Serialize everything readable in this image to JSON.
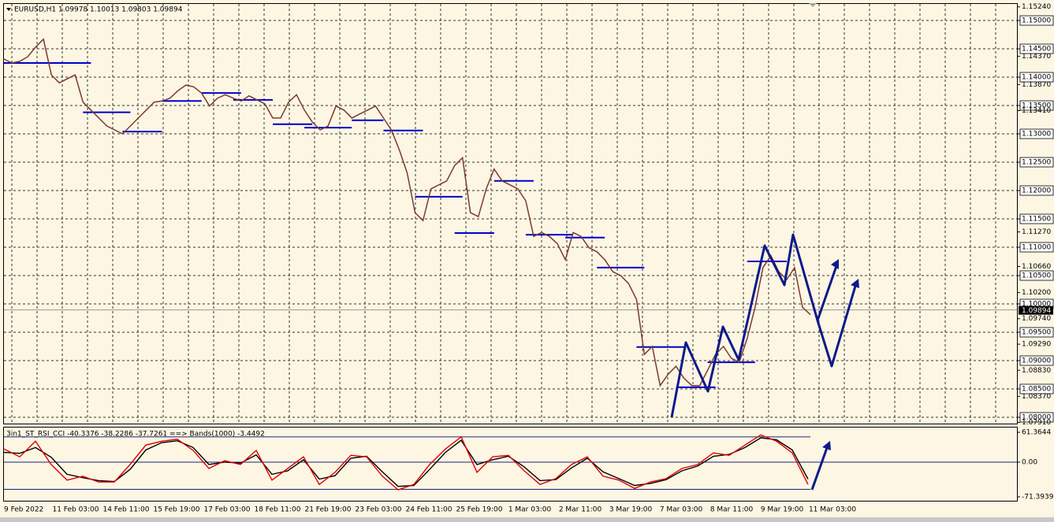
{
  "chart_data": [
    {
      "type": "line",
      "title": "EURUSD,H1  1.09978 1.10013 1.09803 1.09894",
      "color": "#7a3b2e",
      "values": [
        1.1432,
        1.1425,
        1.1428,
        1.1436,
        1.1453,
        1.1467,
        1.1404,
        1.139,
        1.1397,
        1.1404,
        1.1356,
        1.1342,
        1.1328,
        1.1314,
        1.1307,
        1.13,
        1.1314,
        1.1328,
        1.1342,
        1.1356,
        1.1358,
        1.1363,
        1.1376,
        1.1386,
        1.1383,
        1.1372,
        1.1349,
        1.1363,
        1.1369,
        1.1363,
        1.1358,
        1.1367,
        1.136,
        1.1353,
        1.1328,
        1.1328,
        1.1356,
        1.1369,
        1.1342,
        1.1321,
        1.1307,
        1.1314,
        1.1349,
        1.1342,
        1.1328,
        1.1335,
        1.1342,
        1.1349,
        1.1328,
        1.1307,
        1.1272,
        1.1231,
        1.1161,
        1.1147,
        1.1203,
        1.121,
        1.1217,
        1.1244,
        1.1258,
        1.1161,
        1.1154,
        1.1203,
        1.1238,
        1.1217,
        1.121,
        1.1203,
        1.1182,
        1.1119,
        1.1126,
        1.1119,
        1.1106,
        1.1078,
        1.1126,
        1.1119,
        1.1099,
        1.1092,
        1.1078,
        1.1057,
        1.105,
        1.1036,
        1.1008,
        1.0911,
        1.0925,
        1.0856,
        1.0876,
        1.089,
        1.0869,
        1.0856,
        1.0856,
        1.0883,
        1.0911,
        1.0925,
        1.0904,
        1.0897,
        1.0939,
        1.0994,
        1.1064,
        1.1085,
        1.1057,
        1.1043,
        1.1064,
        1.0994,
        1.0981
      ],
      "levels": [
        1.1425,
        1.1338,
        1.1304,
        1.1358,
        1.1372,
        1.136,
        1.1317,
        1.1311,
        1.1324,
        1.1306,
        1.1189,
        1.1125,
        1.1217,
        1.1122,
        1.1117,
        1.1064,
        1.0924,
        1.0853,
        1.0897,
        1.1075
      ],
      "level_color": "#0000cc",
      "last_price": {
        "value": 1.09894,
        "label": "1.09894"
      },
      "ylim": [
        1.07889,
        1.15292
      ],
      "yticks": [
        {
          "value": 1.15,
          "label": "1.15000"
        },
        {
          "value": 1.145,
          "label": "1.14500"
        },
        {
          "value": 1.14,
          "label": "1.14000"
        },
        {
          "value": 1.135,
          "label": "1.13500"
        },
        {
          "value": 1.13,
          "label": "1.13000"
        },
        {
          "value": 1.125,
          "label": "1.12500"
        },
        {
          "value": 1.12,
          "label": "1.12000"
        },
        {
          "value": 1.115,
          "label": "1.11500"
        },
        {
          "value": 1.11,
          "label": "1.11000"
        },
        {
          "value": 1.105,
          "label": "1.10500"
        },
        {
          "value": 1.1,
          "label": "1.10000"
        },
        {
          "value": 1.095,
          "label": "1.09500"
        },
        {
          "value": 1.09,
          "label": "1.09000"
        },
        {
          "value": 1.085,
          "label": "1.08500"
        },
        {
          "value": 1.08,
          "label": "1.08000"
        }
      ],
      "yticks_minor": [
        {
          "value": 1.1524,
          "label": "1.15240"
        },
        {
          "value": 1.1437,
          "label": "1.14370"
        },
        {
          "value": 1.1387,
          "label": "1.13870"
        },
        {
          "value": 1.1341,
          "label": "1.13410"
        },
        {
          "value": 1.1127,
          "label": "1.11270"
        },
        {
          "value": 1.1066,
          "label": "1.10660"
        },
        {
          "value": 1.102,
          "label": "1.10200"
        },
        {
          "value": 1.0974,
          "label": "1.09740"
        },
        {
          "value": 1.0929,
          "label": "1.09290"
        },
        {
          "value": 1.0883,
          "label": "1.08830"
        },
        {
          "value": 1.0837,
          "label": "1.08370"
        },
        {
          "value": 1.0791,
          "label": "1.07910"
        }
      ],
      "x_labels": [
        "9 Feb 2022",
        "11 Feb 03:00",
        "14 Feb 11:00",
        "15 Feb 19:00",
        "17 Feb 03:00",
        "18 Feb 11:00",
        "21 Feb 19:00",
        "23 Feb 03:00",
        "24 Feb 11:00",
        "25 Feb 19:00",
        "1 Mar 03:00",
        "2 Mar 11:00",
        "3 Mar 19:00",
        "7 Mar 03:00",
        "8 Mar 11:00",
        "9 Mar 19:00",
        "11 Mar 03:00"
      ],
      "grid": true
    },
    {
      "type": "line",
      "title": "3in1_ST_RSI_CCI -40.3376 -38.2286 -37.7261 ==> Bands(1000) -3.4492",
      "series": [
        {
          "color": "#000000",
          "values": [
            20,
            18,
            30,
            10,
            -25,
            -32,
            -38,
            -40,
            -15,
            25,
            40,
            44,
            30,
            -5,
            0,
            -2,
            15,
            -25,
            -18,
            5,
            -35,
            -28,
            8,
            12,
            -20,
            -50,
            -48,
            -15,
            20,
            45,
            -5,
            5,
            12,
            -10,
            -38,
            -36,
            -12,
            8,
            -20,
            -34,
            -48,
            -44,
            -36,
            -18,
            -8,
            12,
            16,
            30,
            50,
            46,
            25,
            -35
          ]
        },
        {
          "color": "#e00000",
          "values": [
            27,
            11,
            43,
            -5,
            -37,
            -29,
            -41,
            -41,
            -5,
            35,
            43,
            47,
            24,
            -13,
            3,
            -5,
            24,
            -37,
            -13,
            11,
            -46,
            -21,
            14,
            11,
            -29,
            -57,
            -46,
            -5,
            27,
            52,
            -21,
            11,
            14,
            -18,
            -46,
            -34,
            -5,
            11,
            -29,
            -37,
            -54,
            -41,
            -34,
            -13,
            -5,
            19,
            14,
            35,
            56,
            43,
            19,
            -46
          ]
        }
      ],
      "bands": [
        52,
        -56
      ],
      "band_color": "#1a237e",
      "ylim": [
        -79.5,
        71.2
      ],
      "yticks": [
        {
          "value": 61.3644,
          "label": "61.3644"
        },
        {
          "value": 0,
          "label": "0.00"
        },
        {
          "value": -71.3939,
          "label": "-71.3939"
        }
      ]
    }
  ]
}
